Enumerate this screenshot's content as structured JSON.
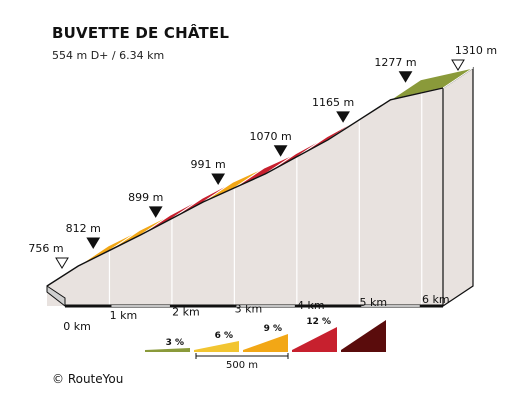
{
  "header": {
    "title": "BUVETTE DE CHÂTEL",
    "subtitle": "554 m D+ / 6.34 km"
  },
  "footer": {
    "credit": "© RouteYou"
  },
  "chart_data": {
    "type": "area",
    "title": "BUVETTE DE CHÂTEL",
    "subtitle": "554 m D+ / 6.34 km",
    "xlabel": "",
    "ylabel": "",
    "xlim": [
      0,
      6.34
    ],
    "ylim": [
      756,
      1310
    ],
    "x_ticks": [
      {
        "km": 0,
        "label": "0 km"
      },
      {
        "km": 1,
        "label": "1 km"
      },
      {
        "km": 2,
        "label": "2 km"
      },
      {
        "km": 3,
        "label": "3 km"
      },
      {
        "km": 4,
        "label": "4 km"
      },
      {
        "km": 5,
        "label": "5 km"
      },
      {
        "km": 6,
        "label": "6 km"
      }
    ],
    "segments": [
      {
        "from_km": 0.0,
        "to_km": 0.5,
        "grade_pct": 11
      },
      {
        "from_km": 0.5,
        "to_km": 1.0,
        "grade_pct": 8
      },
      {
        "from_km": 1.0,
        "to_km": 1.5,
        "grade_pct": 8
      },
      {
        "from_km": 1.5,
        "to_km": 2.0,
        "grade_pct": 11
      },
      {
        "from_km": 2.0,
        "to_km": 2.5,
        "grade_pct": 10
      },
      {
        "from_km": 2.5,
        "to_km": 3.0,
        "grade_pct": 8
      },
      {
        "from_km": 3.0,
        "to_km": 3.5,
        "grade_pct": 11
      },
      {
        "from_km": 3.5,
        "to_km": 4.0,
        "grade_pct": 11
      },
      {
        "from_km": 4.0,
        "to_km": 4.5,
        "grade_pct": 9
      },
      {
        "from_km": 4.5,
        "to_km": 5.0,
        "grade_pct": 13
      },
      {
        "from_km": 5.0,
        "to_km": 5.5,
        "grade_pct": 8
      },
      {
        "from_km": 5.5,
        "to_km": 6.34,
        "grade_pct": 4
      }
    ],
    "waypoints": [
      {
        "km": 0.0,
        "elevation": 756,
        "label": "756 m",
        "marker": "start"
      },
      {
        "km": 0.5,
        "elevation": 812,
        "label": "812 m",
        "marker": "point"
      },
      {
        "km": 1.5,
        "elevation": 899,
        "label": "899 m",
        "marker": "point"
      },
      {
        "km": 2.5,
        "elevation": 991,
        "label": "991 m",
        "marker": "point"
      },
      {
        "km": 3.5,
        "elevation": 1070,
        "label": "1070 m",
        "marker": "point"
      },
      {
        "km": 4.5,
        "elevation": 1165,
        "label": "1165 m",
        "marker": "point"
      },
      {
        "km": 5.5,
        "elevation": 1277,
        "label": "1277 m",
        "marker": "point"
      },
      {
        "km": 6.34,
        "elevation": 1310,
        "label": "1310 m",
        "marker": "end"
      }
    ],
    "legend": {
      "placement": "bottom-center",
      "classes": [
        {
          "label": "3 %",
          "color": "#8a9a3a"
        },
        {
          "label": "6 %",
          "color": "#f2c531"
        },
        {
          "label": "9 %",
          "color": "#f2a716"
        },
        {
          "label": "12 %",
          "color": "#c7202e"
        },
        {
          "label": "",
          "color": "#5a0c0c"
        }
      ],
      "scale_label": "500 m"
    },
    "grade_colors": [
      {
        "max": 5,
        "color": "#8a9a3a"
      },
      {
        "max": 8.5,
        "color": "#f2a716"
      },
      {
        "max": 11.5,
        "color": "#c7202e"
      },
      {
        "max": 100,
        "color": "#5a0c0c"
      }
    ],
    "colors": {
      "side_fill": "#e8e2df",
      "outline": "#111111",
      "ground": "#111111",
      "start_fill": "#cfcfcf"
    }
  }
}
